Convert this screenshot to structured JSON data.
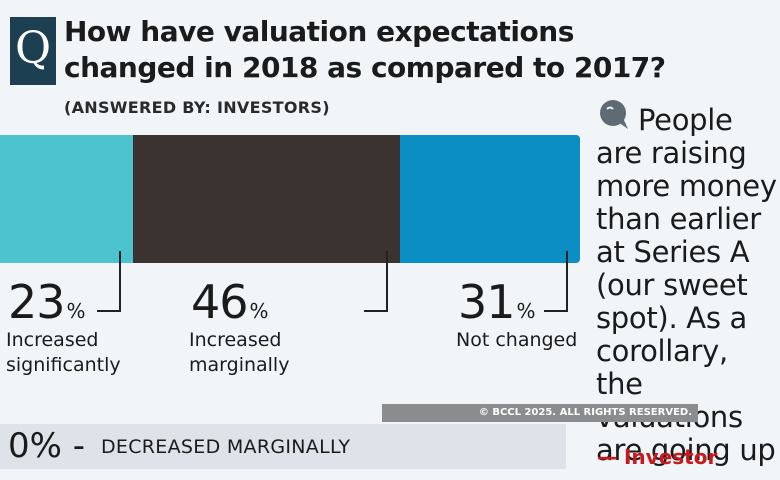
{
  "badge": {
    "letter": "Q"
  },
  "chart_data": {
    "type": "bar",
    "orientation": "horizontal-stacked",
    "title": "How have valuation expectations changed in 2018 as compared to 2017?",
    "subtitle": "(ANSWERED BY: INVESTORS)",
    "categories": [
      "Increased significantly",
      "Increased marginally",
      "Not changed"
    ],
    "values": [
      23,
      46,
      31
    ],
    "value_labels": [
      "23",
      "46",
      "31"
    ],
    "unit": "%",
    "colors": [
      "#4cc3cf",
      "#3a3330",
      "#0a8ec4"
    ],
    "extra_item": {
      "value": "0%",
      "dash": "-",
      "label": "DECREASED MARGINALLY"
    }
  },
  "quote": {
    "text": "People are raising more money than earlier at Series A (our sweet spot). As a corollary, the valuations are going up",
    "attribution": "— Investor",
    "icon": "quote-bubble-icon"
  },
  "watermark": "© BCCL 2025. ALL RIGHTS RESERVED."
}
